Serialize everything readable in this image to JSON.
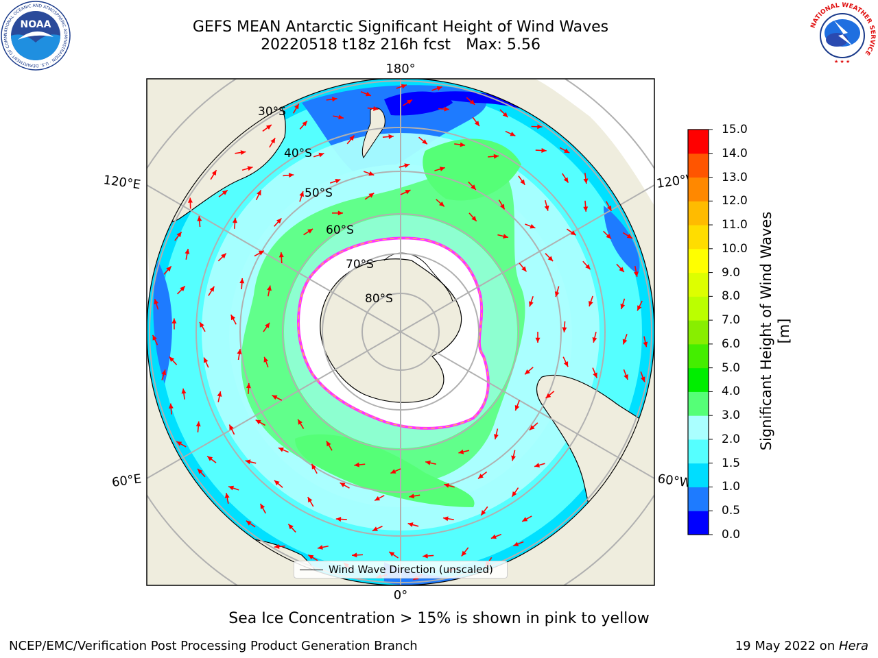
{
  "header": {
    "title_line1": "GEFS MEAN Antarctic Significant Height of Wind Waves",
    "title_line2_run": "20220518 t18z 216h fcst",
    "title_line2_max": "Max: 5.56"
  },
  "logos": {
    "left": "NOAA",
    "left_ring_text": "NATIONAL OCEANIC AND ATMOSPHERIC ADMINISTRATION · U.S. DEPARTMENT OF COMMERCE",
    "right_ring_text": "NATIONAL WEATHER SERVICE"
  },
  "map": {
    "projection": "south-polar-stereographic",
    "longitude_labels": {
      "top": "180°",
      "bottom": "0°",
      "upper_left": "120°E",
      "upper_right": "120°W",
      "lower_left": "60°E",
      "lower_right": "60°W"
    },
    "latitude_labels": [
      "30°S",
      "40°S",
      "50°S",
      "60°S",
      "70°S",
      "80°S"
    ],
    "legend_label": "Wind Wave Direction (unscaled)",
    "arrow_color": "#ff0000",
    "land_color": "#efedde",
    "sea_ice_fill": "#ffffff",
    "ice_edge_colors": [
      "#ff33ff",
      "#ffcc33"
    ]
  },
  "colorbar": {
    "label": "Significant Height of Wind Waves [m]",
    "ticks": [
      "0.0",
      "0.5",
      "1.0",
      "1.5",
      "2.0",
      "3.0",
      "4.0",
      "5.0",
      "6.0",
      "7.0",
      "8.0",
      "9.0",
      "10.0",
      "11.0",
      "12.0",
      "13.0",
      "14.0",
      "15.0"
    ],
    "colors": [
      "#0000ff",
      "#1e7bff",
      "#00ddff",
      "#55ffff",
      "#aaffff",
      "#55ff77",
      "#00ee00",
      "#44ee00",
      "#88ee00",
      "#bbff00",
      "#ddff00",
      "#ffff00",
      "#ffdd00",
      "#ffbb00",
      "#ff8800",
      "#ff5500",
      "#ff0000"
    ]
  },
  "footer": {
    "footnote": "Sea Ice Concentration > 15% is shown in pink to yellow",
    "credit": "NCEP/EMC/Verification Post Processing Product Generation Branch",
    "date_prefix": "19 May 2022 on ",
    "date_host": "Hera"
  }
}
